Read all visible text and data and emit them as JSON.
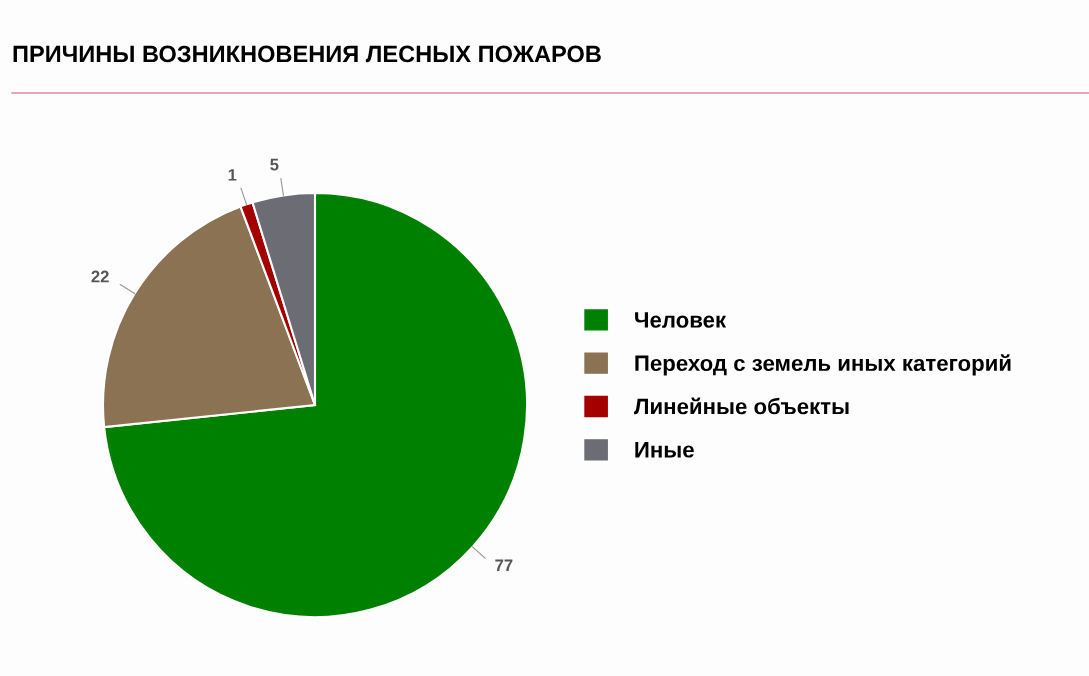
{
  "chart_data": {
    "type": "pie",
    "title": "ПРИЧИНЫ ВОЗНИКНОВЕНИЯ ЛЕСНЫХ ПОЖАРОВ",
    "categories": [
      "Человек",
      "Переход с земель иных категорий",
      "Линейные объекты",
      "Иные"
    ],
    "values": [
      77,
      22,
      1,
      5
    ],
    "colors": [
      "#008000",
      "#8a7252",
      "#a50000",
      "#6c6d74"
    ],
    "data_labels": true,
    "legend": "right"
  }
}
